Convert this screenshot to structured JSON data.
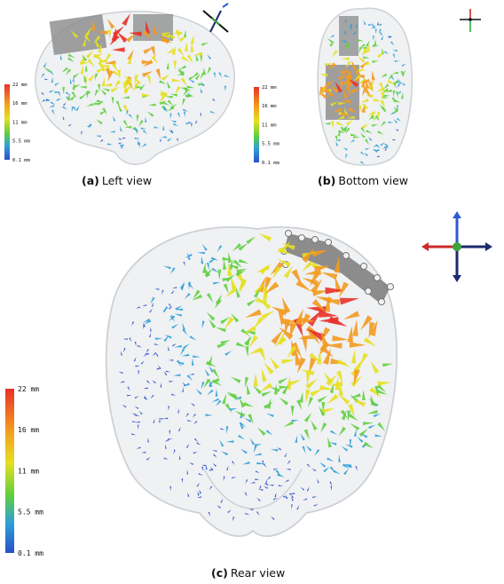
{
  "panels": {
    "left": {
      "letter": "(a)",
      "caption": "Left view"
    },
    "bottom": {
      "letter": "(b)",
      "caption": "Bottom view"
    },
    "rear": {
      "letter": "(c)",
      "caption": "Rear view"
    }
  },
  "colorbar": {
    "ticks": [
      "22 mm",
      "16 mm",
      "11 mm",
      "5.5 mm",
      "0.1 mm"
    ],
    "colors": [
      "#e8312a",
      "#f39a1f",
      "#e6e020",
      "#5fcf3e",
      "#2f9fd8",
      "#2b4fc8"
    ]
  },
  "axes_colors": {
    "red": "#cc2a2a",
    "blue": "#2c5bd1",
    "green": "#3aa53a",
    "black": "#111111",
    "navy": "#1c2a6e"
  }
}
